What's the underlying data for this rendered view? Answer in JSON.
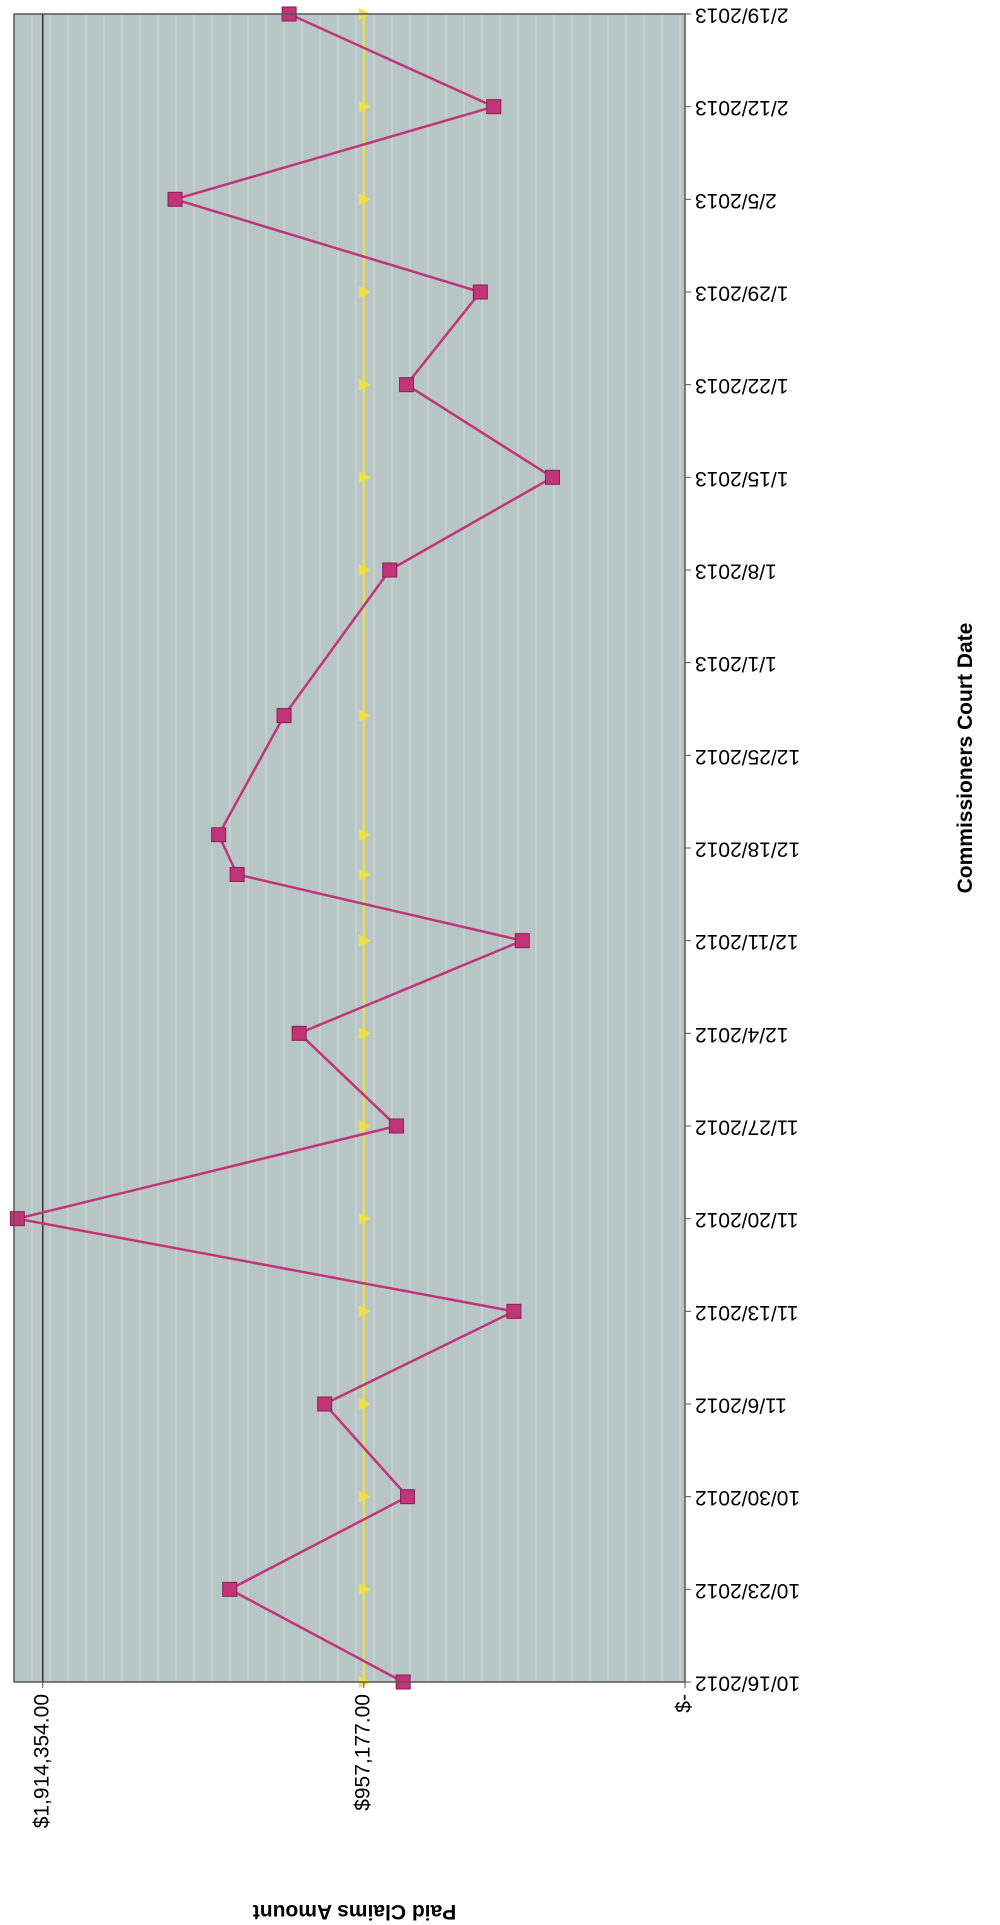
{
  "chart_data": {
    "type": "line",
    "orientation": "rotated-90-clockwise",
    "title": "",
    "xlabel": "Commissioners Court Date",
    "ylabel": "Paid Claims Amount",
    "ylim": [
      0,
      2000000
    ],
    "yticks": [
      {
        "value": 0,
        "label": "$-"
      },
      {
        "value": 957177,
        "label": "$957,177.00"
      },
      {
        "value": 1914354,
        "label": "$1,914,354.00"
      }
    ],
    "x": [
      "10/16/2012",
      "10/23/2012",
      "10/30/2012",
      "11/6/2012",
      "11/13/2012",
      "11/20/2012",
      "11/27/2012",
      "12/4/2012",
      "12/11/2012",
      "12/18/2012",
      "12/25/2012",
      "1/1/2013",
      "1/8/2013",
      "1/15/2013",
      "1/22/2013",
      "1/29/2013",
      "2/5/2013",
      "2/12/2013",
      "2/19/2013"
    ],
    "grid": true,
    "legend": "none",
    "series": [
      {
        "color": "#c0357a",
        "marker": "square",
        "points": [
          {
            "date": "10/16/2012",
            "value": 840000
          },
          {
            "date": "10/23/2012",
            "value": 1357000
          },
          {
            "date": "10/30/2012",
            "value": 827000
          },
          {
            "date": "11/6/2012",
            "value": 1074000
          },
          {
            "date": "11/13/2012",
            "value": 510000
          },
          {
            "date": "11/20/2012",
            "value": 1990000
          },
          {
            "date": "11/27/2012",
            "value": 860000
          },
          {
            "date": "12/4/2012",
            "value": 1150000
          },
          {
            "date": "12/11/2012",
            "value": 485000
          },
          {
            "date": "12/16/2012",
            "value": 1335000
          },
          {
            "date": "12/19/2012",
            "value": 1390000
          },
          {
            "date": "12/28/2012",
            "value": 1195000
          },
          {
            "date": "1/8/2013",
            "value": 880000
          },
          {
            "date": "1/15/2013",
            "value": 395000
          },
          {
            "date": "1/22/2013",
            "value": 830000
          },
          {
            "date": "1/29/2013",
            "value": 610000
          },
          {
            "date": "2/5/2013",
            "value": 1520000
          },
          {
            "date": "2/12/2013",
            "value": 570000
          },
          {
            "date": "2/19/2013",
            "value": 1180000
          }
        ]
      },
      {
        "color": "#f0e040",
        "marker": "triangle",
        "points": [
          {
            "date": "10/16/2012",
            "value": 957177
          },
          {
            "date": "10/23/2012",
            "value": 957177
          },
          {
            "date": "10/30/2012",
            "value": 957177
          },
          {
            "date": "11/6/2012",
            "value": 957177
          },
          {
            "date": "11/13/2012",
            "value": 957177
          },
          {
            "date": "11/20/2012",
            "value": 957177
          },
          {
            "date": "11/27/2012",
            "value": 957177
          },
          {
            "date": "12/4/2012",
            "value": 957177
          },
          {
            "date": "12/11/2012",
            "value": 957177
          },
          {
            "date": "12/16/2012",
            "value": 957177
          },
          {
            "date": "12/19/2012",
            "value": 957177
          },
          {
            "date": "12/28/2012",
            "value": 957177
          },
          {
            "date": "1/8/2013",
            "value": 957177
          },
          {
            "date": "1/15/2013",
            "value": 957177
          },
          {
            "date": "1/22/2013",
            "value": 957177
          },
          {
            "date": "1/29/2013",
            "value": 957177
          },
          {
            "date": "2/5/2013",
            "value": 957177
          },
          {
            "date": "2/12/2013",
            "value": 957177
          },
          {
            "date": "2/19/2013",
            "value": 957177
          }
        ]
      }
    ],
    "reference_line": {
      "value": 1914354,
      "color": "#333333"
    }
  },
  "colors": {
    "plot_background": "#b9c6c6",
    "gridline": "#d2dada",
    "frame": "#555555"
  }
}
